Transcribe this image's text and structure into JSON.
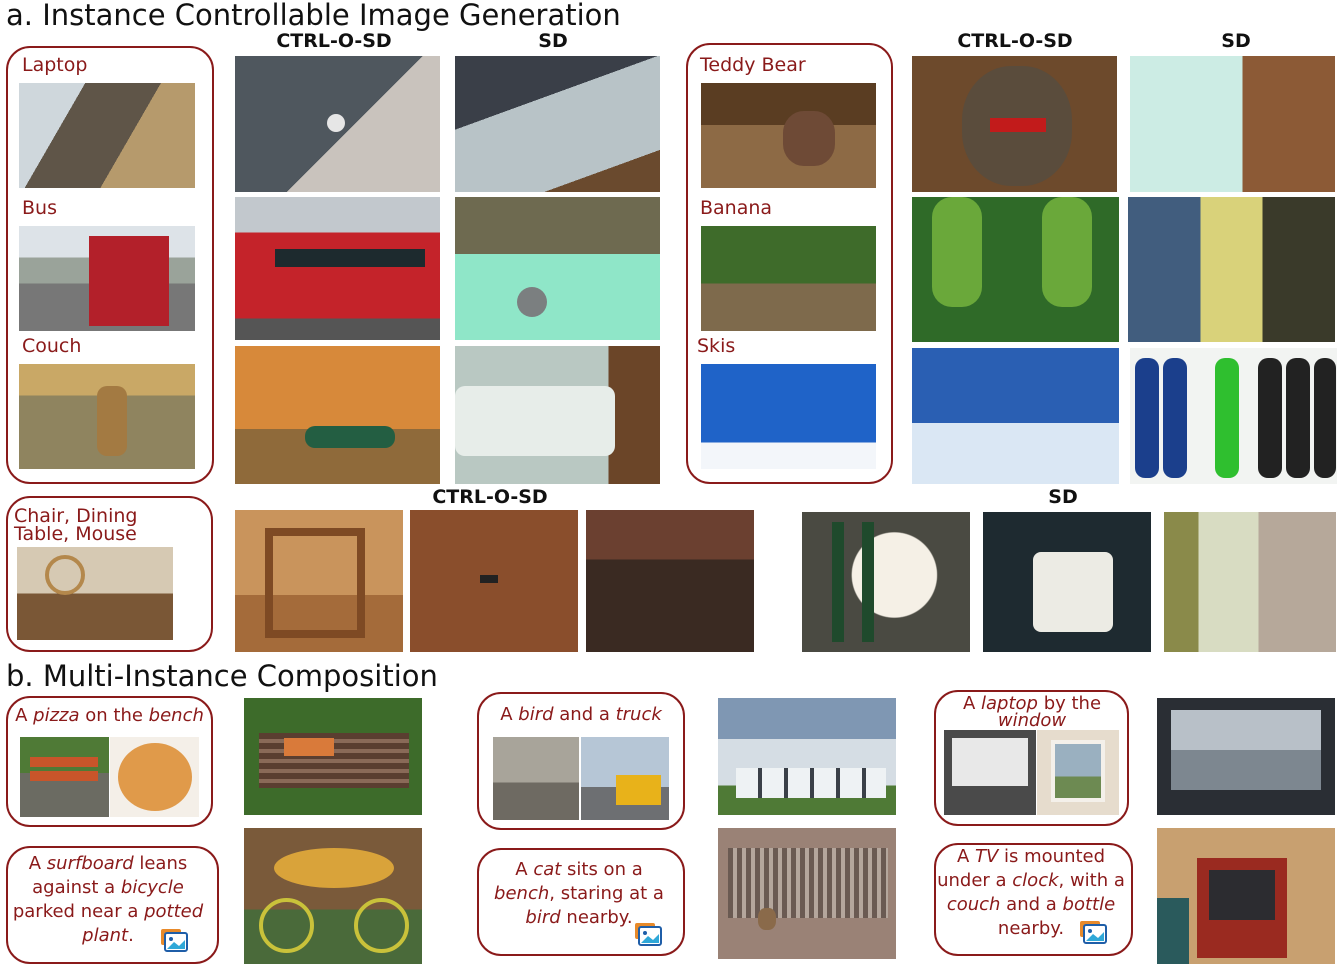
{
  "section_a": {
    "title": "a. Instance Controllable Image Generation",
    "col_ctrl": "CTRL-O-SD",
    "col_sd": "SD",
    "group1_labels": [
      "Laptop",
      "Bus",
      "Couch"
    ],
    "group2_labels": [
      "Teddy Bear",
      "Banana",
      "Skis"
    ],
    "multi_label_line1": "Chair, Dining",
    "multi_label_line2": "Table, Mouse"
  },
  "section_b": {
    "title": "b. Multi-Instance Composition",
    "prompt1": {
      "p1": "A ",
      "i1": "pizza",
      "p2": " on the ",
      "i2": "bench"
    },
    "prompt2": {
      "p1": "A ",
      "i1": "bird",
      "p2": " and a ",
      "i2": "truck"
    },
    "prompt3": {
      "p1": "A ",
      "i1": "laptop",
      "p2": " by the",
      "i2": "window"
    },
    "caption1": {
      "t1": "A ",
      "i1": "surfboard",
      "t2": " leans against a ",
      "i2": "bicycle",
      "t3": " parked near a ",
      "i3": "potted plant",
      "t4": "."
    },
    "caption2": {
      "t1": "A ",
      "i1": "cat",
      "t2": " sits on a ",
      "i2": "bench",
      "t3": ", staring at a ",
      "i3": "bird",
      "t4": " nearby."
    },
    "caption3": {
      "t1": "A ",
      "i1": "TV",
      "t2": " is mounted under a ",
      "i2": "clock",
      "t3": ", with a ",
      "i3": "couch",
      "t4": " and a ",
      "i4": "bottle",
      "t5": " nearby."
    }
  },
  "colors": {
    "accent": "#8a1a1a",
    "text": "#111111"
  }
}
